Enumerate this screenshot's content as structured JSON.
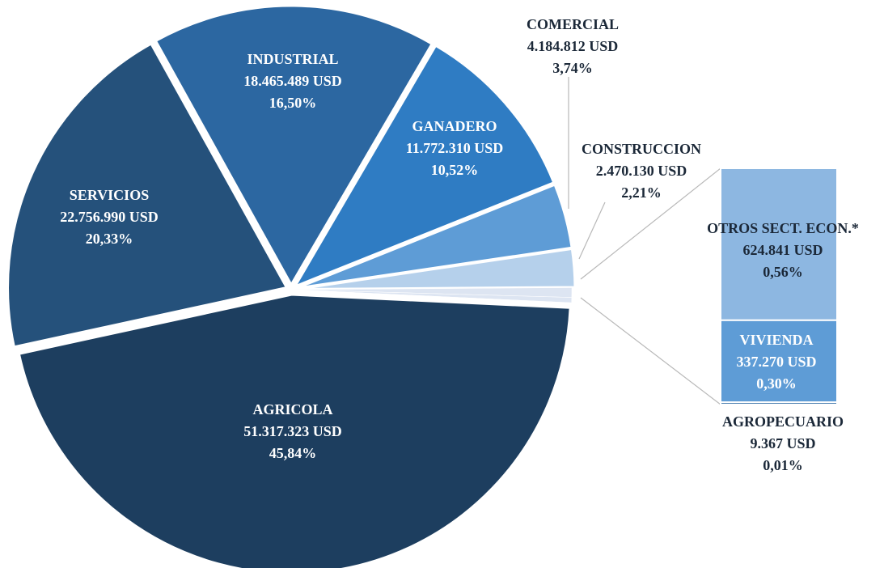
{
  "chart_data": {
    "type": "pie-of-bar",
    "categories": [
      "AGRICOLA",
      "SERVICIOS",
      "INDUSTRIAL",
      "GANADERO",
      "COMERCIAL",
      "CONSTRUCCION",
      "OTROS SECT. ECON.*",
      "VIVIENDA",
      "AGROPECUARIO"
    ],
    "values": [
      51317323,
      22756990,
      18465489,
      11772310,
      4184812,
      2470130,
      624841,
      337270,
      9367
    ],
    "value_labels": [
      "51.317.323 USD",
      "22.756.990 USD",
      "18.465.489 USD",
      "11.772.310 USD",
      "4.184.812 USD",
      "2.470.130 USD",
      "624.841 USD",
      "337.270 USD",
      "9.367 USD"
    ],
    "percentages": [
      45.84,
      20.33,
      16.5,
      10.52,
      3.74,
      2.21,
      0.56,
      0.3,
      0.01
    ],
    "percentage_labels": [
      "45,84%",
      "20,33%",
      "16,50%",
      "10,52%",
      "3,74%",
      "2,21%",
      "0,56%",
      "0,30%",
      "0,01%"
    ],
    "colors": [
      "#1d3e5f",
      "#25517b",
      "#2c67a1",
      "#2f7cc3",
      "#5e9cd6",
      "#b5d0eb",
      "#8db7e1",
      "#5e9cd6",
      "#2c67a1"
    ],
    "rest_color": "#dde5f2",
    "bar_categories": [
      6,
      7,
      8
    ]
  }
}
